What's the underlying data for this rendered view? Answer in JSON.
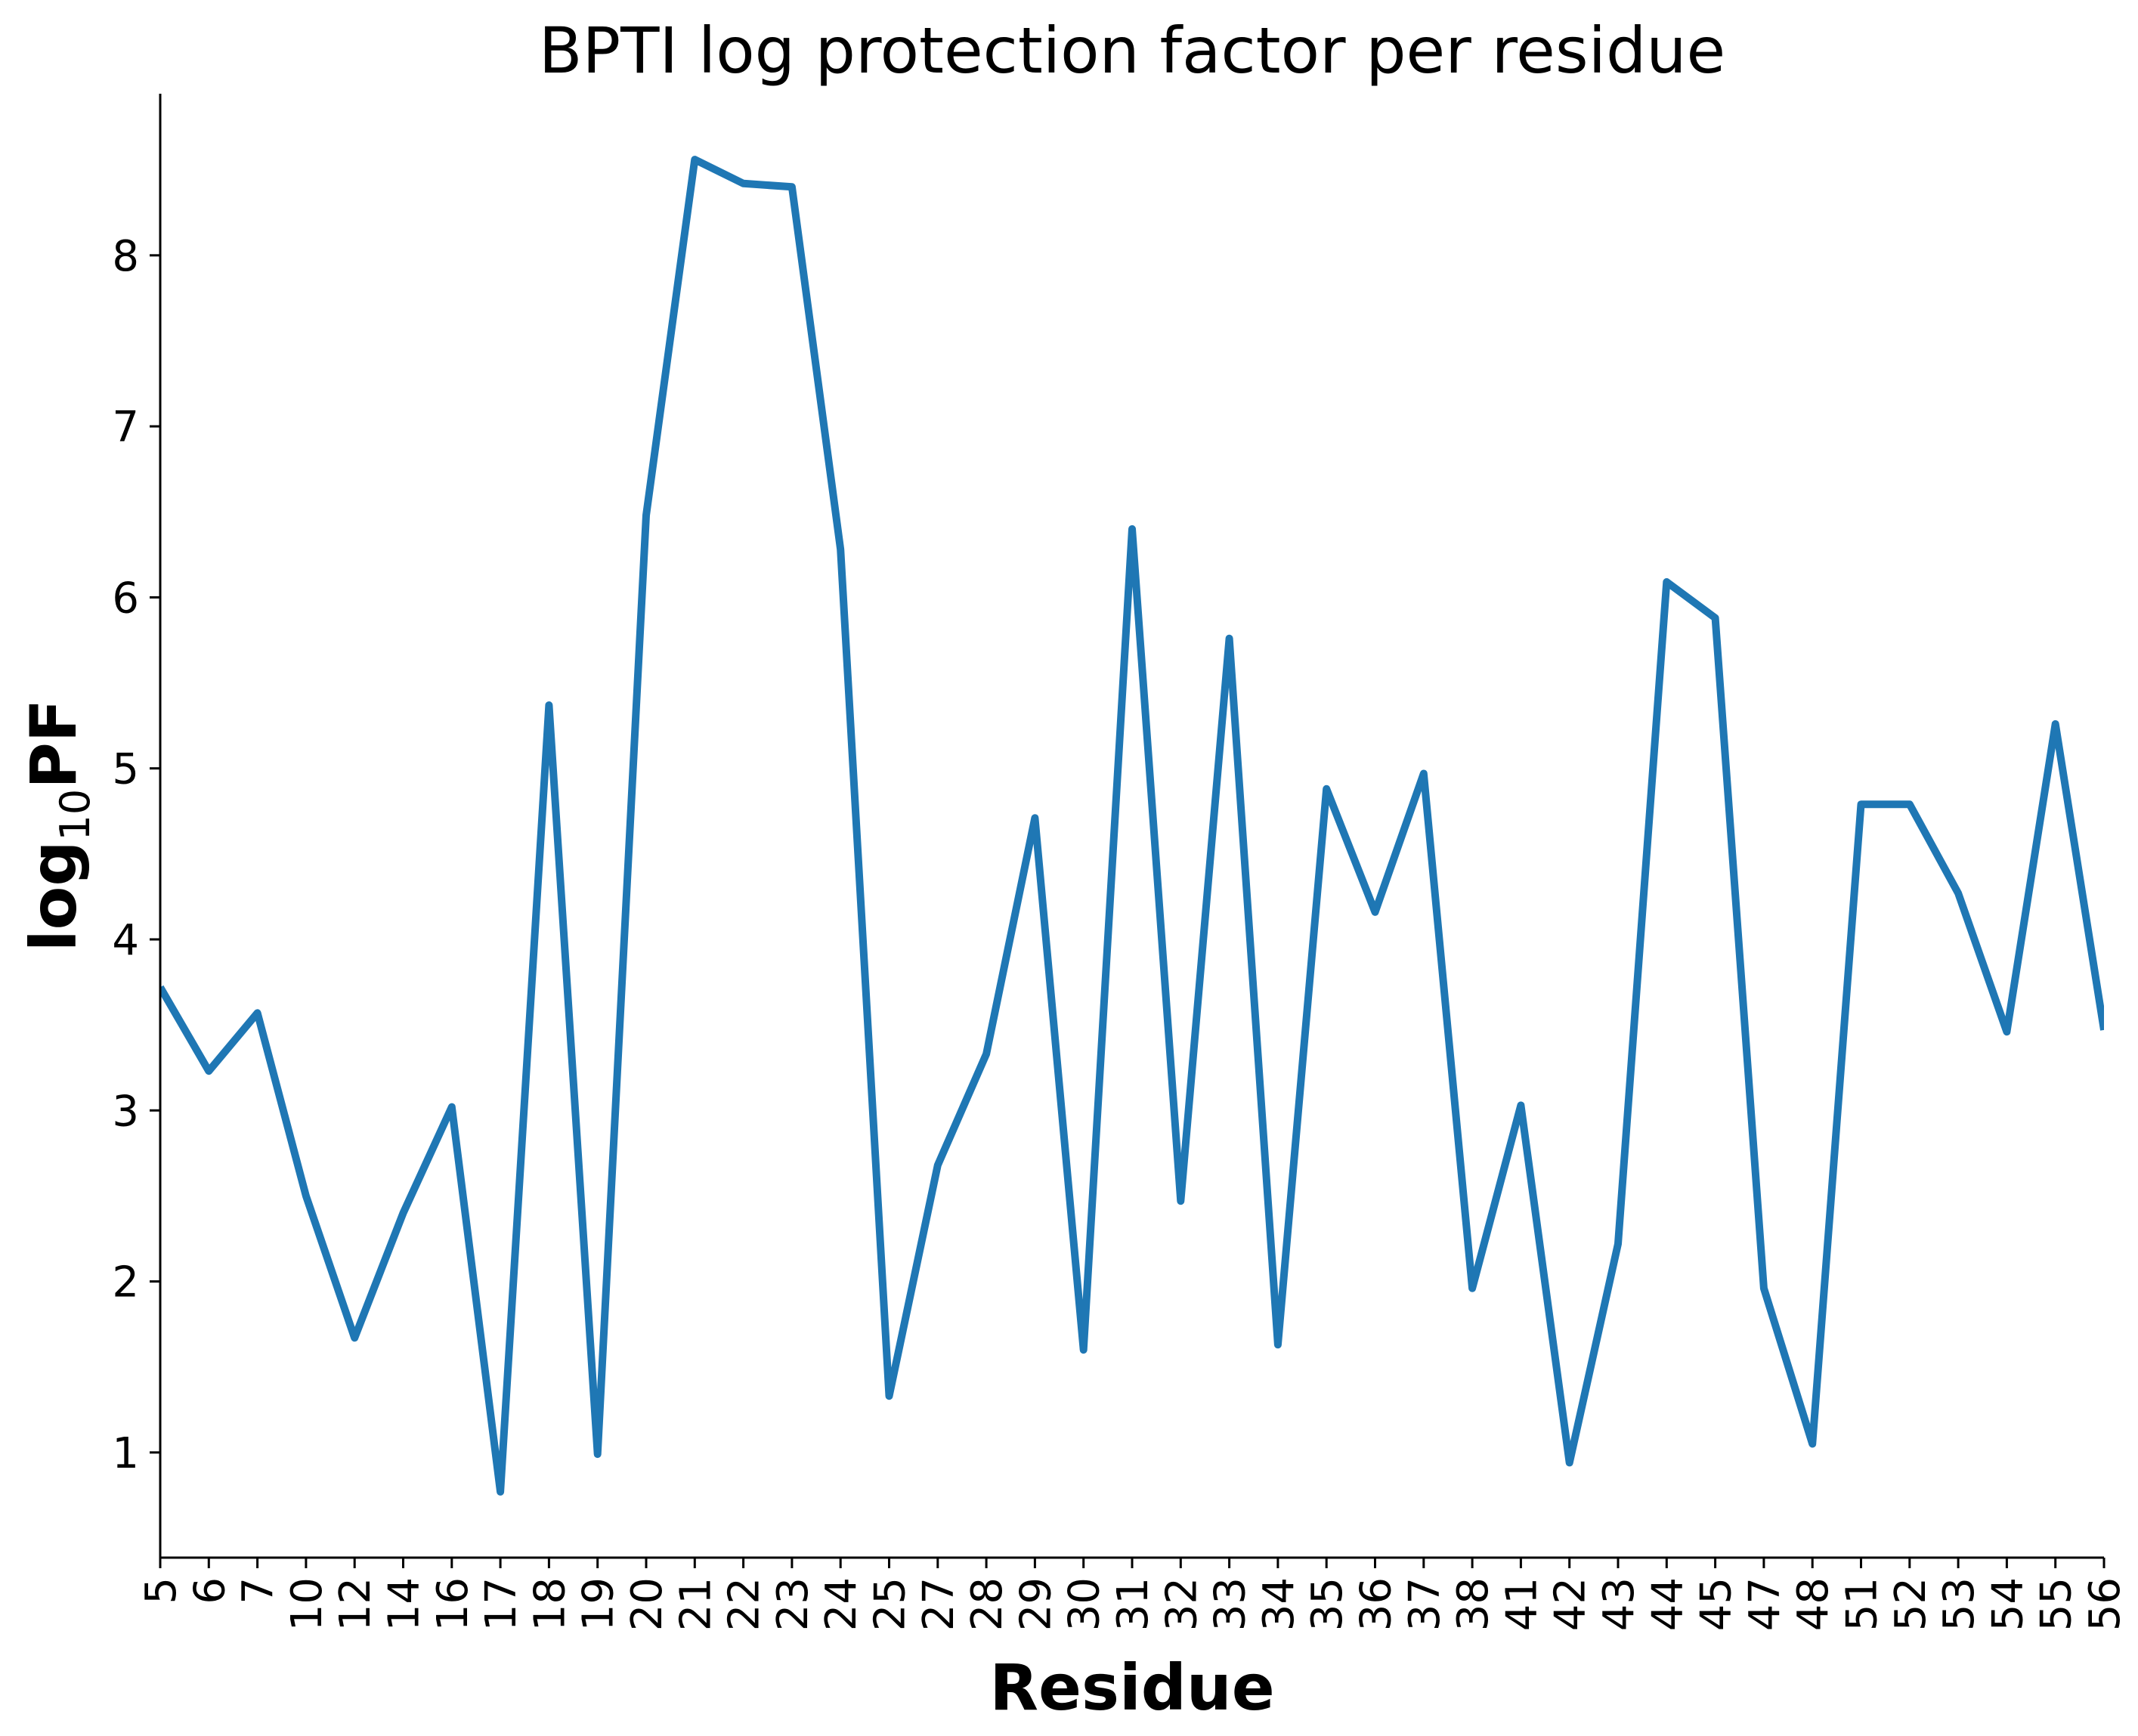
{
  "chart_data": {
    "type": "line",
    "title": "BPTI log protection factor per residue",
    "xlabel": "Residue",
    "ylabel": {
      "base": "log",
      "subscript": "10",
      "main": "PF"
    },
    "categories": [
      "5",
      "6",
      "7",
      "10",
      "12",
      "14",
      "16",
      "17",
      "18",
      "19",
      "20",
      "21",
      "22",
      "23",
      "24",
      "25",
      "27",
      "28",
      "29",
      "30",
      "31",
      "32",
      "33",
      "34",
      "35",
      "36",
      "37",
      "38",
      "41",
      "42",
      "43",
      "44",
      "45",
      "47",
      "48",
      "51",
      "52",
      "53",
      "54",
      "55",
      "56"
    ],
    "series": [
      {
        "values": [
          3.72,
          3.23,
          3.57,
          2.5,
          1.67,
          2.4,
          3.02,
          0.77,
          5.37,
          0.99,
          6.48,
          8.56,
          8.42,
          8.4,
          6.28,
          1.33,
          2.68,
          3.33,
          4.71,
          1.6,
          6.4,
          2.47,
          5.76,
          1.63,
          4.88,
          4.16,
          4.97,
          1.96,
          3.03,
          0.94,
          2.22,
          6.09,
          5.88,
          1.96,
          1.05,
          4.79,
          4.79,
          4.27,
          3.46,
          5.26,
          3.47
        ],
        "color": "#1f77b4"
      }
    ],
    "yticks": [
      "1",
      "2",
      "3",
      "4",
      "5",
      "6",
      "7",
      "8"
    ],
    "ylim": [
      0.385,
      8.945
    ],
    "grid": false,
    "legend": "none"
  }
}
